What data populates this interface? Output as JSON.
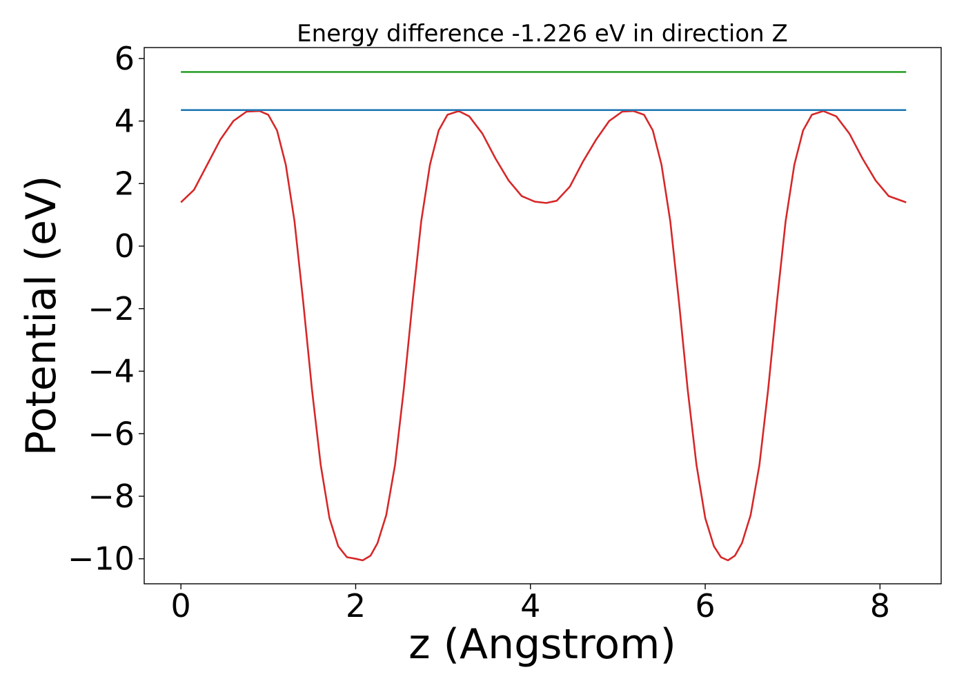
{
  "chart_data": {
    "type": "line",
    "title": "Energy difference -1.226 eV in direction Z",
    "xlabel": "z (Angstrom)",
    "ylabel": "Potential (eV)",
    "xlim": [
      -0.42,
      8.7
    ],
    "ylim": [
      -10.8,
      6.35
    ],
    "xticks": [
      0,
      2,
      4,
      6,
      8
    ],
    "xtick_labels": [
      "0",
      "2",
      "4",
      "6",
      "8"
    ],
    "yticks": [
      6,
      4,
      2,
      0,
      -2,
      -4,
      -6,
      -8,
      -10
    ],
    "ytick_labels": [
      "6",
      "4",
      "2",
      "0",
      "−2",
      "−4",
      "−6",
      "−8",
      "−10"
    ],
    "grid": false,
    "legend": "none",
    "series": [
      {
        "color": "#d62728",
        "x": [
          0.0,
          0.15,
          0.3,
          0.45,
          0.6,
          0.75,
          0.9,
          1.0,
          1.1,
          1.2,
          1.3,
          1.4,
          1.5,
          1.6,
          1.7,
          1.8,
          1.9,
          2.0,
          2.08,
          2.17,
          2.25,
          2.35,
          2.45,
          2.55,
          2.65,
          2.75,
          2.85,
          2.95,
          3.05,
          3.18,
          3.3,
          3.45,
          3.6,
          3.75,
          3.9,
          4.05,
          4.18,
          4.3,
          4.45,
          4.6,
          4.75,
          4.9,
          5.05,
          5.18,
          5.3,
          5.4,
          5.5,
          5.6,
          5.7,
          5.8,
          5.9,
          6.0,
          6.1,
          6.18,
          6.26,
          6.34,
          6.42,
          6.52,
          6.62,
          6.72,
          6.82,
          6.92,
          7.02,
          7.12,
          7.22,
          7.35,
          7.5,
          7.65,
          7.8,
          7.95,
          8.1,
          8.3
        ],
        "y": [
          1.4,
          1.8,
          2.6,
          3.4,
          4.0,
          4.3,
          4.32,
          4.2,
          3.7,
          2.6,
          0.8,
          -1.8,
          -4.6,
          -7.0,
          -8.7,
          -9.6,
          -9.95,
          -10.0,
          -10.05,
          -9.9,
          -9.5,
          -8.6,
          -7.0,
          -4.6,
          -1.8,
          0.8,
          2.6,
          3.7,
          4.2,
          4.32,
          4.15,
          3.6,
          2.8,
          2.1,
          1.6,
          1.42,
          1.38,
          1.45,
          1.9,
          2.7,
          3.4,
          4.0,
          4.3,
          4.32,
          4.2,
          3.7,
          2.6,
          0.8,
          -1.8,
          -4.6,
          -7.0,
          -8.7,
          -9.6,
          -9.95,
          -10.05,
          -9.9,
          -9.5,
          -8.6,
          -7.0,
          -4.6,
          -1.8,
          0.8,
          2.6,
          3.7,
          4.2,
          4.32,
          4.15,
          3.6,
          2.8,
          2.1,
          1.6,
          1.4
        ]
      },
      {
        "color": "#1f77b4",
        "x": [
          0.0,
          8.3
        ],
        "y": [
          4.35,
          4.35
        ]
      },
      {
        "color": "#2ca02c",
        "x": [
          0.0,
          8.3
        ],
        "y": [
          5.57,
          5.57
        ]
      }
    ]
  }
}
